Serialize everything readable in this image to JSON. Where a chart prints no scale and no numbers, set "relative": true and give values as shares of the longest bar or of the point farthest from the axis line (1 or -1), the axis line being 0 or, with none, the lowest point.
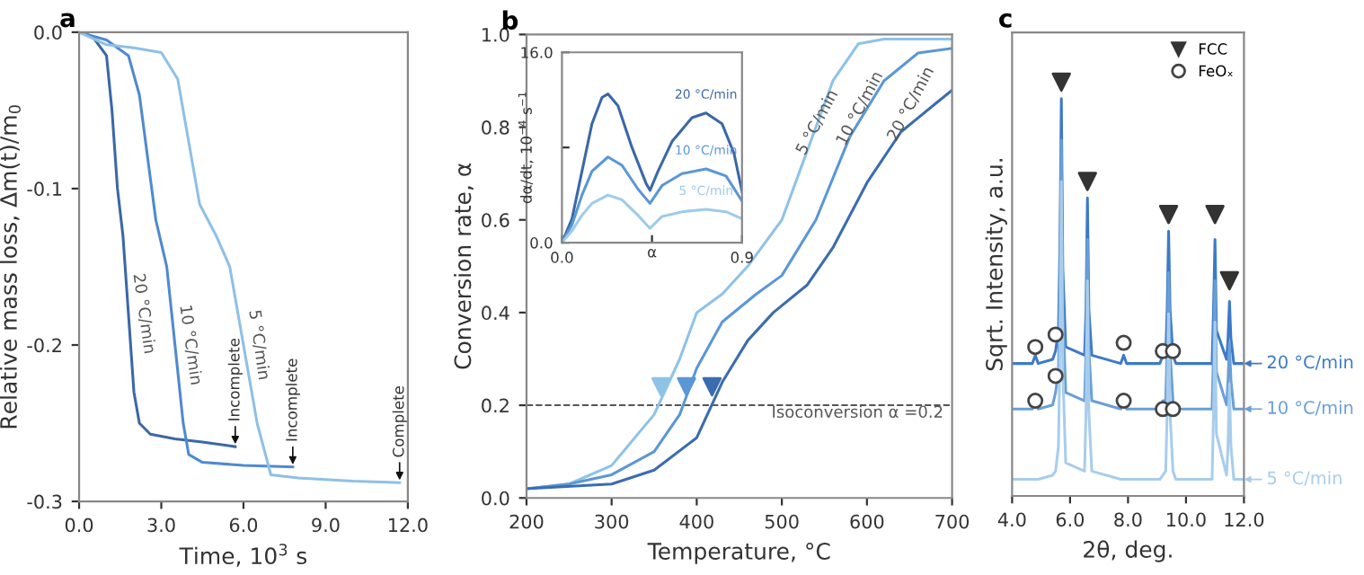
{
  "chart_data": [
    {
      "type": "line",
      "title": "a",
      "xlabel": "Time, 10$^{3}$ s",
      "ylabel": "Relative mass loss, Δm(t)/m$_{0}$",
      "xlim": [
        0,
        12
      ],
      "ylim": [
        -0.3,
        0
      ],
      "xticks": [
        {
          "value": 0,
          "label": "0.0"
        },
        {
          "value": 3,
          "label": "3.0"
        },
        {
          "value": 6,
          "label": "6.0"
        },
        {
          "value": 9,
          "label": "9.0"
        },
        {
          "value": 12,
          "label": "12.0"
        }
      ],
      "yticks": [
        {
          "value": 0,
          "label": "0.0"
        },
        -0.1,
        -0.2,
        -0.3
      ],
      "series": [
        {
          "name": "20 °C/min",
          "color": "#3a68a8",
          "x": [
            0,
            0.5,
            1.0,
            1.2,
            1.4,
            1.6,
            1.8,
            2.0,
            2.2,
            2.6,
            3.5,
            4.5,
            5.7
          ],
          "values": [
            0,
            -0.003,
            -0.015,
            -0.05,
            -0.1,
            -0.13,
            -0.18,
            -0.23,
            -0.25,
            -0.257,
            -0.26,
            -0.262,
            -0.265
          ]
        },
        {
          "name": "10 °C/min",
          "color": "#4f8ad0",
          "x": [
            0,
            1.0,
            1.8,
            2.2,
            2.5,
            2.8,
            3.2,
            3.5,
            3.8,
            4.0,
            4.5,
            6.0,
            7.8
          ],
          "values": [
            0,
            -0.005,
            -0.015,
            -0.04,
            -0.08,
            -0.12,
            -0.15,
            -0.2,
            -0.25,
            -0.27,
            -0.275,
            -0.277,
            -0.278
          ]
        },
        {
          "name": "5 °C/min",
          "color": "#8fc0e6",
          "x": [
            0,
            1.0,
            2.0,
            3.0,
            3.6,
            4.0,
            4.4,
            5.0,
            5.5,
            6.0,
            6.5,
            7.0,
            8.0,
            10.0,
            11.7
          ],
          "values": [
            0,
            -0.008,
            -0.01,
            -0.013,
            -0.03,
            -0.07,
            -0.11,
            -0.13,
            -0.15,
            -0.2,
            -0.25,
            -0.283,
            -0.285,
            -0.287,
            -0.288
          ]
        }
      ],
      "annotations": [
        {
          "text": "Incomplete",
          "x": 5.7,
          "y": -0.265
        },
        {
          "text": "Incomplete",
          "x": 7.8,
          "y": -0.278
        },
        {
          "text": "Complete",
          "x": 11.7,
          "y": -0.288
        }
      ]
    },
    {
      "type": "line",
      "title": "b",
      "xlabel": "Temperature, °C",
      "ylabel": "Conversion rate, α",
      "xlim": [
        200,
        700
      ],
      "ylim": [
        0,
        1.0
      ],
      "xticks": [
        200,
        300,
        400,
        500,
        600,
        700
      ],
      "yticks": [
        {
          "value": 0,
          "label": "0.0"
        },
        0.2,
        0.4,
        0.6,
        0.8,
        {
          "value": 1,
          "label": "1.0"
        }
      ],
      "series": [
        {
          "name": "5 °C/min",
          "color": "#8ec3e8",
          "x": [
            200,
            250,
            300,
            350,
            380,
            400,
            430,
            460,
            500,
            530,
            560,
            590,
            620,
            700
          ],
          "values": [
            0.02,
            0.03,
            0.07,
            0.18,
            0.3,
            0.4,
            0.44,
            0.5,
            0.6,
            0.75,
            0.9,
            0.98,
            0.99,
            0.99
          ]
        },
        {
          "name": "10 °C/min",
          "color": "#5a97d6",
          "x": [
            200,
            250,
            300,
            350,
            380,
            400,
            430,
            470,
            500,
            540,
            580,
            620,
            660,
            700
          ],
          "values": [
            0.02,
            0.03,
            0.05,
            0.1,
            0.18,
            0.28,
            0.38,
            0.44,
            0.48,
            0.6,
            0.78,
            0.9,
            0.96,
            0.97
          ]
        },
        {
          "name": "20 °C/min",
          "color": "#3a6cb0",
          "x": [
            200,
            300,
            350,
            400,
            430,
            460,
            490,
            530,
            560,
            600,
            640,
            680,
            700
          ],
          "values": [
            0.02,
            0.03,
            0.06,
            0.13,
            0.25,
            0.34,
            0.4,
            0.46,
            0.54,
            0.68,
            0.79,
            0.85,
            0.88
          ]
        },
        {
          "type": "scatter",
          "marker": "triangle",
          "x": [
            358,
            388,
            418
          ],
          "values": [
            0.24,
            0.24,
            0.24
          ],
          "colors": [
            "#8ec3e8",
            "#5a97d6",
            "#3a6cb0"
          ]
        }
      ],
      "ref_lines": [
        {
          "axis": "y",
          "value": 0.2,
          "label": "Isoconversion α =0.2",
          "color": "#555555",
          "line_style": "dashed"
        }
      ]
    },
    {
      "type": "line",
      "xlabel": "α",
      "ylabel": "dα/dt, 10$^{−4}$ s$^{−1}$",
      "xlim": [
        0,
        0.9
      ],
      "ylim": [
        0,
        16
      ],
      "xticks": [
        {
          "value": 0,
          "label": "0.0"
        },
        {
          "value": 0.45,
          "label": null
        },
        0.9
      ],
      "yticks": [
        {
          "value": 0,
          "label": "0.0"
        },
        {
          "value": 8,
          "label": null
        },
        {
          "value": 16,
          "label": "16.0"
        }
      ],
      "series": [
        {
          "name": "20 °C/min",
          "color": "#3a68a8",
          "x": [
            0,
            0.05,
            0.1,
            0.15,
            0.2,
            0.23,
            0.28,
            0.35,
            0.42,
            0.44,
            0.48,
            0.55,
            0.65,
            0.72,
            0.8,
            0.86,
            0.9
          ],
          "values": [
            0,
            2,
            6,
            10,
            12.2,
            12.5,
            11.5,
            8,
            5,
            4.4,
            6,
            8.5,
            10.5,
            10.9,
            10,
            7.5,
            4.3
          ]
        },
        {
          "name": "10 °C/min",
          "color": "#5a97d6",
          "x": [
            0,
            0.05,
            0.1,
            0.15,
            0.23,
            0.3,
            0.38,
            0.44,
            0.5,
            0.6,
            0.72,
            0.82,
            0.9
          ],
          "values": [
            0,
            1.5,
            4,
            6,
            7.2,
            6.5,
            4.5,
            3.3,
            4.8,
            5.8,
            6.2,
            5.6,
            3.5
          ]
        },
        {
          "name": "5 °C/min",
          "color": "#9fcbea",
          "x": [
            0,
            0.05,
            0.1,
            0.15,
            0.23,
            0.3,
            0.38,
            0.44,
            0.5,
            0.6,
            0.72,
            0.82,
            0.9
          ],
          "values": [
            0,
            1,
            2.3,
            3.3,
            4.0,
            3.6,
            2.3,
            1.2,
            2.2,
            2.6,
            2.8,
            2.6,
            2.0
          ]
        }
      ]
    },
    {
      "type": "line",
      "title": "c",
      "xlabel": "2θ, deg.",
      "ylabel": "Sqrt. Intensity, a.u.",
      "relative": true,
      "tick_labels": "x",
      "xlim": [
        4.0,
        12.0
      ],
      "xticks": [
        {
          "value": 4,
          "label": "4.0"
        },
        {
          "value": 6,
          "label": "6.0"
        },
        {
          "value": 8,
          "label": "8.0"
        },
        {
          "value": 10,
          "label": "10.0"
        },
        {
          "value": 12,
          "label": "12.0"
        }
      ],
      "legend": "top right",
      "series": [
        {
          "name": "20 °C/min",
          "color": "#3d79c8",
          "x": [
            4.0,
            4.7,
            4.8,
            4.9,
            5.4,
            5.5,
            5.6,
            5.65,
            5.7,
            5.75,
            5.85,
            6.5,
            6.55,
            6.6,
            6.65,
            6.75,
            7.75,
            7.85,
            7.95,
            9.1,
            9.2,
            9.3,
            9.35,
            9.4,
            9.45,
            9.55,
            9.65,
            10.9,
            10.95,
            11.0,
            11.05,
            11.4,
            11.45,
            11.5,
            11.55,
            11.65,
            12.0
          ],
          "values": [
            0.32,
            0.32,
            0.34,
            0.32,
            0.33,
            0.35,
            0.4,
            0.6,
            0.96,
            0.55,
            0.36,
            0.34,
            0.45,
            0.72,
            0.45,
            0.34,
            0.32,
            0.34,
            0.32,
            0.32,
            0.34,
            0.34,
            0.45,
            0.64,
            0.45,
            0.34,
            0.32,
            0.32,
            0.45,
            0.62,
            0.4,
            0.33,
            0.38,
            0.47,
            0.38,
            0.32,
            0.32
          ]
        },
        {
          "name": "10 °C/min",
          "color": "#6a9fd6",
          "x": [
            4.0,
            4.7,
            4.8,
            4.9,
            5.4,
            5.5,
            5.6,
            5.65,
            5.7,
            5.75,
            5.85,
            6.5,
            6.55,
            6.6,
            6.65,
            6.75,
            7.75,
            7.85,
            7.95,
            9.1,
            9.2,
            9.3,
            9.35,
            9.4,
            9.45,
            9.55,
            9.65,
            10.9,
            10.95,
            11.0,
            11.05,
            11.4,
            11.45,
            11.5,
            11.55,
            11.65,
            12.0
          ],
          "values": [
            0.21,
            0.21,
            0.23,
            0.21,
            0.22,
            0.25,
            0.3,
            0.5,
            0.86,
            0.45,
            0.25,
            0.23,
            0.35,
            0.62,
            0.35,
            0.23,
            0.21,
            0.23,
            0.21,
            0.21,
            0.23,
            0.23,
            0.35,
            0.54,
            0.35,
            0.23,
            0.21,
            0.21,
            0.35,
            0.52,
            0.3,
            0.22,
            0.28,
            0.37,
            0.28,
            0.21,
            0.21
          ]
        },
        {
          "name": "5 °C/min",
          "color": "#a8cdec",
          "x": [
            4.0,
            4.7,
            4.8,
            4.9,
            5.4,
            5.5,
            5.6,
            5.65,
            5.7,
            5.75,
            5.85,
            6.5,
            6.55,
            6.6,
            6.65,
            6.75,
            7.75,
            7.85,
            7.95,
            9.1,
            9.2,
            9.3,
            9.35,
            9.4,
            9.45,
            9.55,
            9.65,
            10.9,
            10.95,
            11.0,
            11.05,
            11.4,
            11.45,
            11.5,
            11.55,
            11.65,
            12.0
          ],
          "values": [
            0.04,
            0.04,
            0.04,
            0.04,
            0.05,
            0.06,
            0.12,
            0.35,
            0.76,
            0.3,
            0.08,
            0.06,
            0.2,
            0.52,
            0.2,
            0.06,
            0.04,
            0.04,
            0.04,
            0.04,
            0.05,
            0.06,
            0.2,
            0.44,
            0.2,
            0.06,
            0.04,
            0.04,
            0.2,
            0.42,
            0.15,
            0.05,
            0.12,
            0.27,
            0.12,
            0.04,
            0.04
          ]
        },
        {
          "type": "scatter",
          "name": "FCC",
          "marker": "triangle",
          "color": "#333333",
          "x": [
            5.7,
            6.6,
            9.4,
            11.0,
            11.5
          ],
          "values": [
            1.0,
            0.76,
            0.68,
            0.68,
            0.52
          ]
        },
        {
          "type": "scatter",
          "name": "FeOₓ",
          "marker": "circle",
          "color": "#444444",
          "x": [
            4.8,
            5.5,
            7.85,
            9.2,
            9.55,
            4.8,
            5.5,
            7.85,
            9.2,
            9.55
          ],
          "values": [
            0.36,
            0.39,
            0.37,
            0.35,
            0.35,
            0.23,
            0.29,
            0.23,
            0.21,
            0.21
          ]
        }
      ]
    }
  ]
}
